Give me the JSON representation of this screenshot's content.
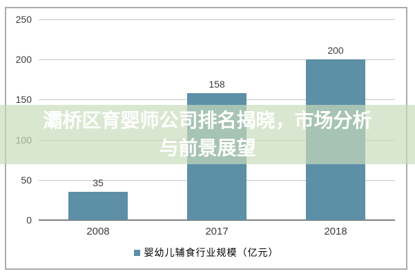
{
  "overlay": {
    "band_color": "rgba(201, 220, 186, 0.68)",
    "text_color": "#ffffff",
    "title_line1": "灞桥区育婴师公司排名揭晓，市场分析",
    "title_line2": "与前景展望"
  },
  "legend": {
    "label": "婴幼儿辅食行业规模（亿元）",
    "marker_color": "#5d8fa7"
  },
  "chart_data": {
    "type": "bar",
    "title": "",
    "xlabel": "",
    "ylabel": "",
    "categories": [
      "2008",
      "2017",
      "2018"
    ],
    "series": [
      {
        "name": "婴幼儿辅食行业规模（亿元）",
        "values": [
          35,
          158,
          200
        ]
      }
    ],
    "data_labels": [
      "35",
      "158",
      "200"
    ],
    "ylim": [
      0,
      250
    ],
    "yticks": [
      0,
      50,
      100,
      150,
      200,
      250
    ],
    "grid": true,
    "legend_position": "bottom",
    "bar_color": "#5d8fa7",
    "gridline_color": "#c5c5c5",
    "axis_line_color": "#7f7f7f",
    "tick_label_color": "#3b3b3b",
    "frame_border_color": "#ababab"
  }
}
